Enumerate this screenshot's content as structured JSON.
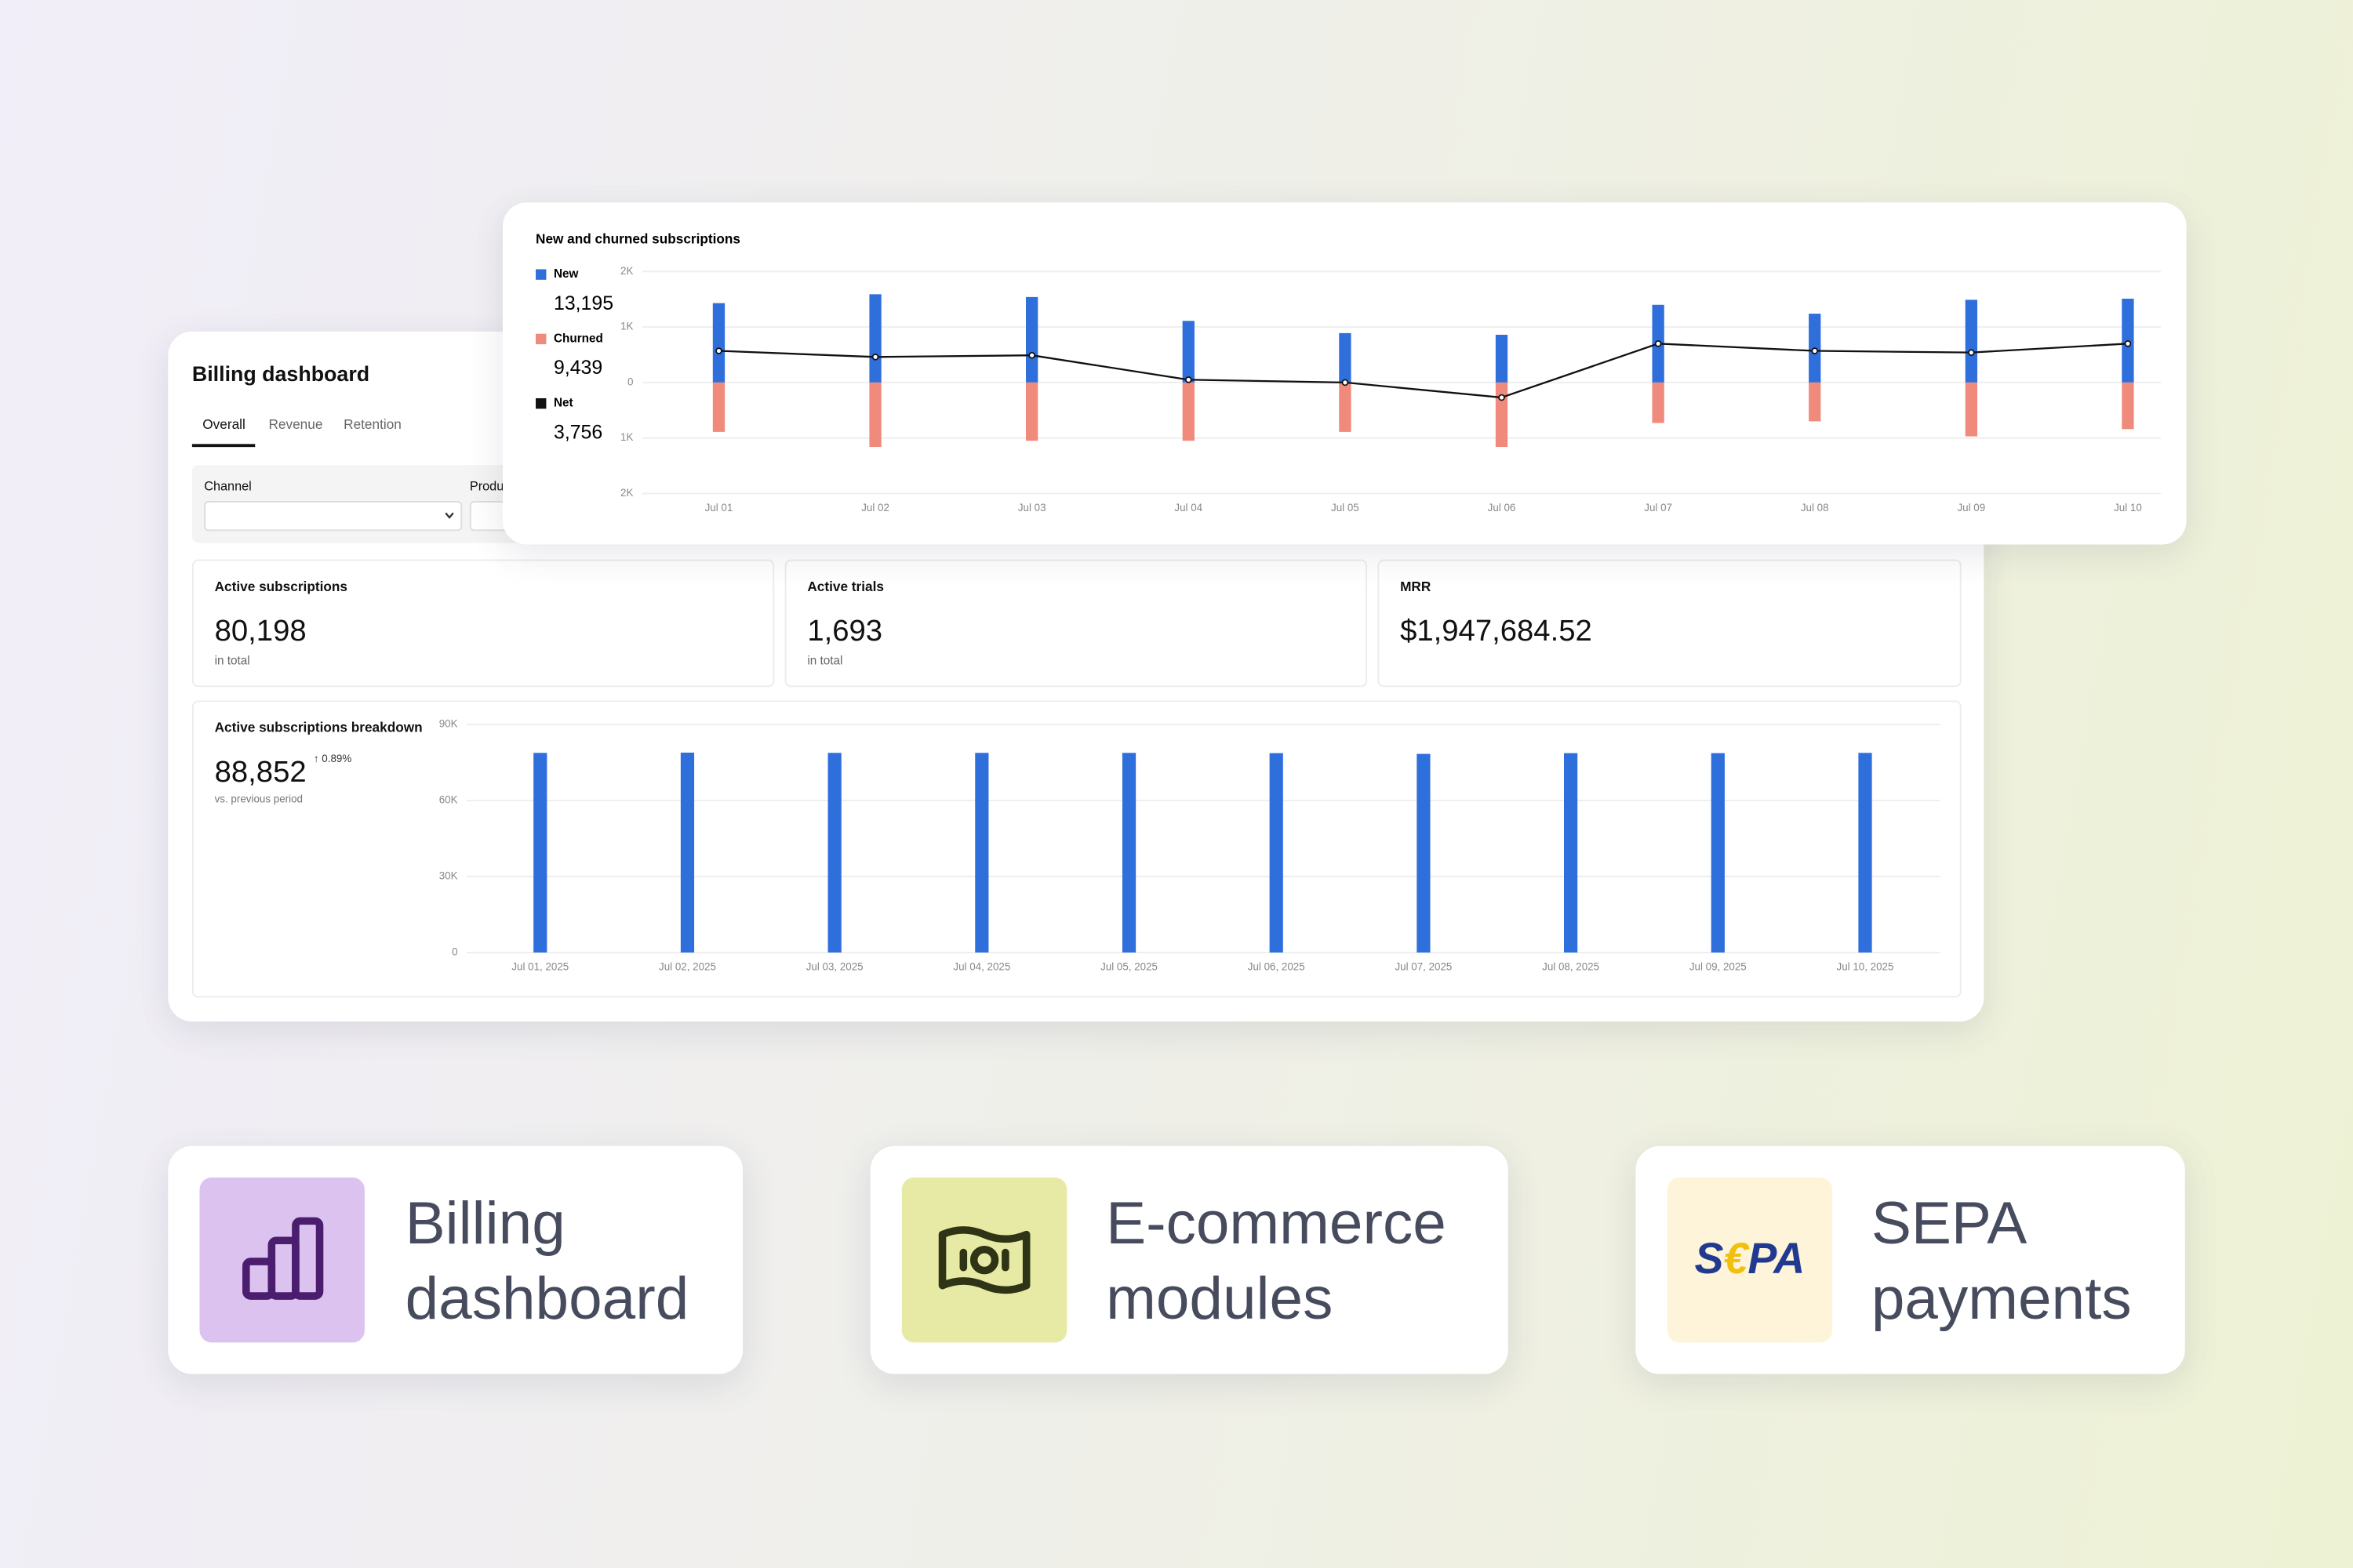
{
  "dashboard": {
    "title": "Billing dashboard",
    "tabs": [
      "Overall",
      "Revenue",
      "Retention"
    ],
    "filters": [
      "Channel",
      "Product"
    ],
    "kpis": [
      {
        "label": "Active subscriptions",
        "value": "80,198",
        "note": "in total"
      },
      {
        "label": "Active trials",
        "value": "1,693",
        "note": "in total"
      },
      {
        "label": "MRR",
        "value": "$1,947,684.52"
      }
    ],
    "breakdown": {
      "title": "Active subscriptions breakdown",
      "total": "88,852",
      "change": "↑ 0.89%",
      "note": "vs. previous period",
      "chart": {
        "type": "bar",
        "categories": [
          "Jul 01, 2025",
          "Jul 02, 2025",
          "Jul 03, 2025",
          "Jul 04, 2025",
          "Jul 05, 2025",
          "Jul 06, 2025",
          "Jul 07, 2025",
          "Jul 08, 2025",
          "Jul 09, 2025",
          "Jul 10, 2025"
        ],
        "values": [
          78800,
          78900,
          78800,
          78800,
          78800,
          78700,
          78400,
          78700,
          78700,
          78800
        ],
        "color": "#2f6fdc",
        "ylim": [
          0,
          90000
        ],
        "yticks": [
          0,
          {
            "value": 30000,
            "label": "30K"
          },
          {
            "value": 60000,
            "label": "60K"
          },
          {
            "value": 90000,
            "label": "90K"
          }
        ],
        "grid": true
      }
    }
  },
  "subscriptions": {
    "type": "bar",
    "title": "New and churned subscriptions",
    "categories": [
      "Jul 01",
      "Jul 02",
      "Jul 03",
      "Jul 04",
      "Jul 05",
      "Jul 06",
      "Jul 07",
      "Jul 08",
      "Jul 09",
      "Jul 10"
    ],
    "series": [
      {
        "name": "New",
        "color": "#2f6fdc",
        "total": "13,195",
        "values": [
          1430,
          1590,
          1540,
          1110,
          890,
          860,
          1400,
          1240,
          1490,
          1510
        ]
      },
      {
        "name": "Churned",
        "color": "#f08a7c",
        "total": "9,439",
        "values": [
          -890,
          -1160,
          -1050,
          -1050,
          -890,
          -1160,
          -730,
          -700,
          -970,
          -840
        ]
      },
      {
        "name": "Net",
        "color": "#111111",
        "total": "3,756",
        "type": "line",
        "values": [
          570,
          460,
          490,
          50,
          0,
          -270,
          700,
          570,
          540,
          700
        ]
      }
    ],
    "ylim": [
      -2000,
      2000
    ],
    "yticks": [
      {
        "value": -2000,
        "label": "2K"
      },
      {
        "value": -1000,
        "label": "1K"
      },
      0,
      {
        "value": 1000,
        "label": "1K"
      },
      {
        "value": 2000,
        "label": "2K"
      }
    ],
    "grid": true
  },
  "features": [
    {
      "title": "Billing dashboard"
    },
    {
      "title": "E-commerce modules"
    },
    {
      "title": "SEPA payments",
      "logo": [
        "S",
        "€",
        "PA"
      ]
    }
  ]
}
